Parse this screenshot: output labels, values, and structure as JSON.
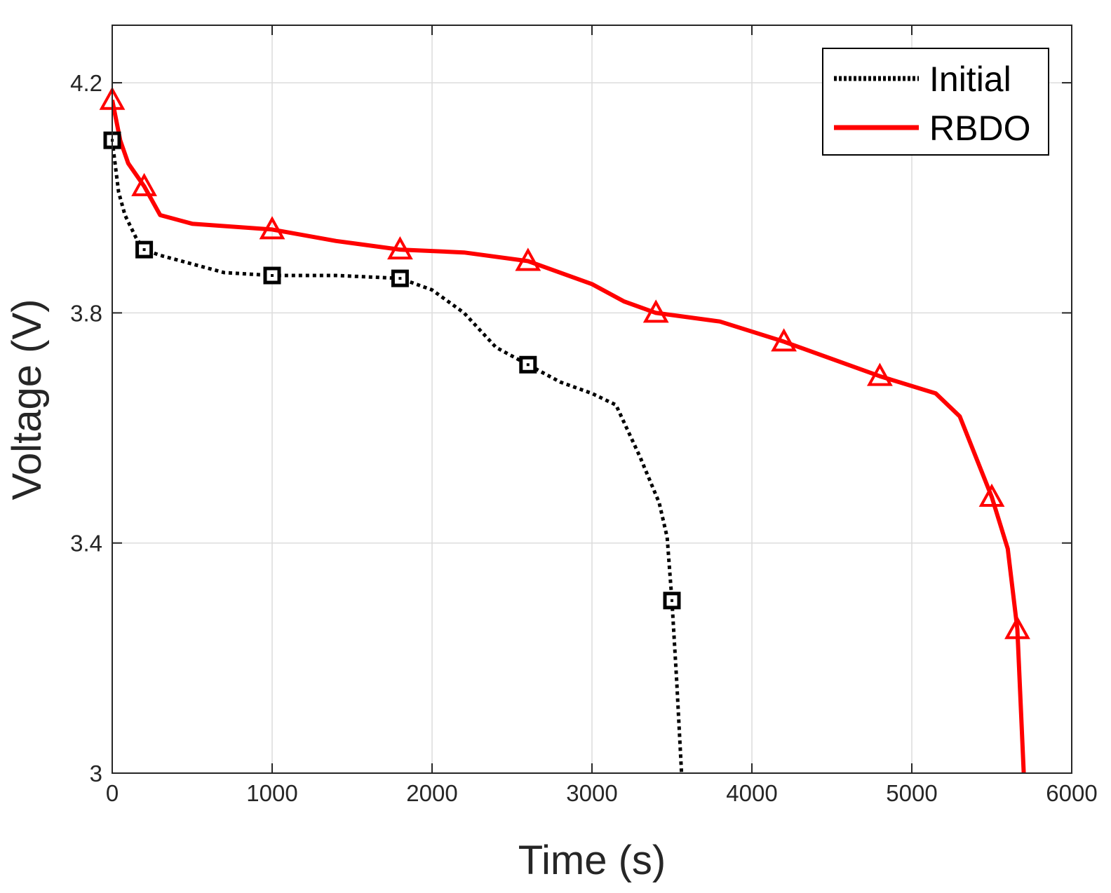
{
  "chart_data": {
    "type": "line",
    "title": "",
    "xlabel": "Time (s)",
    "ylabel": "Voltage (V)",
    "xlim": [
      0,
      6000
    ],
    "ylim": [
      3.0,
      4.3
    ],
    "xticks": [
      0,
      1000,
      2000,
      3000,
      4000,
      5000,
      6000
    ],
    "xtick_labels": [
      "0",
      "1000",
      "2000",
      "3000",
      "4000",
      "5000",
      "6000"
    ],
    "yticks": [
      3.0,
      3.4,
      3.8,
      4.2
    ],
    "ytick_labels": [
      "3",
      "3.4",
      "3.8",
      "4.2"
    ],
    "grid": true,
    "legend_position": "top-right",
    "series": [
      {
        "name": "Initial",
        "style": "dotted",
        "marker": "square",
        "color": "#000000",
        "x": [
          0,
          40,
          80,
          150,
          200,
          300,
          500,
          700,
          1000,
          1400,
          1800,
          2000,
          2200,
          2400,
          2600,
          2800,
          3000,
          3150,
          3300,
          3420,
          3470,
          3500,
          3530,
          3560
        ],
        "y": [
          4.1,
          4.01,
          3.97,
          3.93,
          3.91,
          3.9,
          3.885,
          3.87,
          3.865,
          3.865,
          3.86,
          3.84,
          3.8,
          3.74,
          3.71,
          3.68,
          3.66,
          3.64,
          3.55,
          3.47,
          3.41,
          3.3,
          3.16,
          3.0
        ],
        "marker_x": [
          0,
          200,
          1000,
          1800,
          2600,
          3500
        ],
        "marker_y": [
          4.1,
          3.91,
          3.865,
          3.86,
          3.71,
          3.3
        ]
      },
      {
        "name": "RBDO",
        "style": "solid",
        "marker": "triangle",
        "color": "#ff0000",
        "x": [
          0,
          50,
          100,
          200,
          300,
          500,
          1000,
          1400,
          1800,
          2200,
          2600,
          3000,
          3200,
          3400,
          3800,
          4200,
          4800,
          5150,
          5300,
          5400,
          5500,
          5600,
          5660,
          5700
        ],
        "y": [
          4.17,
          4.1,
          4.06,
          4.02,
          3.97,
          3.955,
          3.945,
          3.925,
          3.91,
          3.905,
          3.89,
          3.85,
          3.82,
          3.8,
          3.785,
          3.75,
          3.69,
          3.66,
          3.62,
          3.55,
          3.48,
          3.39,
          3.25,
          3.0
        ],
        "marker_x": [
          0,
          200,
          1000,
          1800,
          2600,
          3400,
          4200,
          4800,
          5500,
          5660
        ],
        "marker_y": [
          4.17,
          4.02,
          3.945,
          3.91,
          3.89,
          3.8,
          3.75,
          3.69,
          3.48,
          3.25
        ]
      }
    ]
  },
  "colors": {
    "initial": "#000000",
    "rbdo": "#ff0000",
    "grid": "#dcdcdc",
    "axis": "#262626"
  }
}
